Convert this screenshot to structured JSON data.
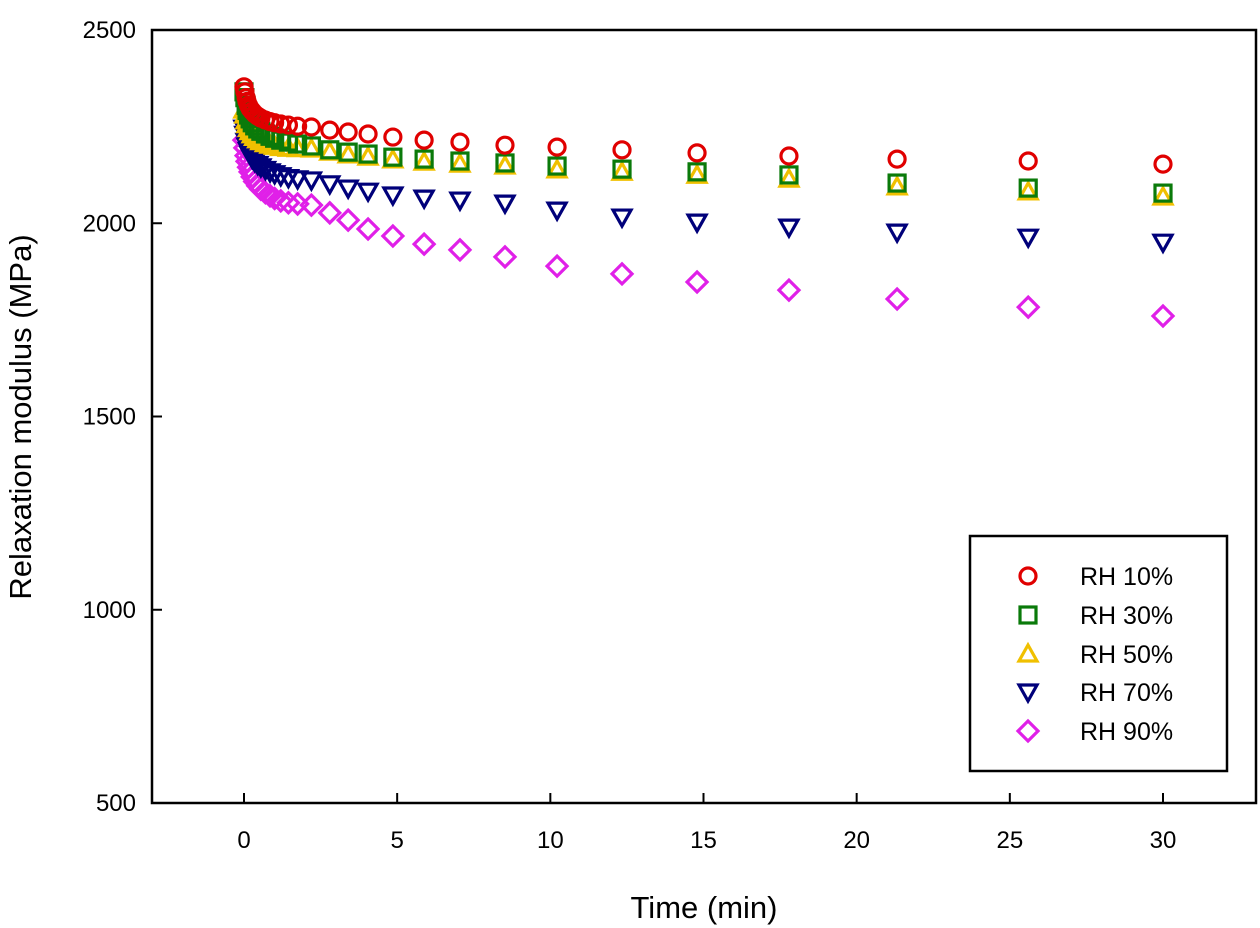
{
  "chart_data": {
    "type": "scatter",
    "title": "",
    "xlabel": "Time (min)",
    "ylabel": "Relaxation modulus (MPa)",
    "xlim": [
      -3,
      33
    ],
    "ylim": [
      500,
      2500
    ],
    "xticks": [
      0,
      5,
      10,
      15,
      20,
      25,
      30
    ],
    "yticks": [
      500,
      1000,
      1500,
      2000,
      2500
    ],
    "xtick_labels": [
      "0",
      "5",
      "10",
      "15",
      "20",
      "25",
      "30"
    ],
    "ytick_labels": [
      "500",
      "1000",
      "1500",
      "2000",
      "2500"
    ],
    "grid": false,
    "legend_position": "bottom-right",
    "x": [
      0,
      0.03,
      0.07,
      0.1,
      0.15,
      0.2,
      0.27,
      0.35,
      0.45,
      0.55,
      0.7,
      0.85,
      1.0,
      1.2,
      1.45,
      1.75,
      2.2,
      2.8,
      3.4,
      4.05,
      4.86,
      5.88,
      7.05,
      8.52,
      10.22,
      12.34,
      14.79,
      17.79,
      21.32,
      25.6,
      30
    ],
    "series": [
      {
        "name": "RH 10%",
        "marker": "circle",
        "color": "#e00000",
        "values": [
          2353,
          2340,
          2325,
          2315,
          2305,
          2297,
          2290,
          2283,
          2277,
          2272,
          2267,
          2263,
          2260,
          2257,
          2254,
          2251,
          2249,
          2241,
          2236,
          2231,
          2223,
          2215,
          2210,
          2202,
          2197,
          2190,
          2182,
          2174,
          2166,
          2161,
          2153
        ]
      },
      {
        "name": "RH 30%",
        "marker": "square",
        "color": "#0a7a0a",
        "values": [
          2340,
          2325,
          2305,
          2292,
          2280,
          2270,
          2260,
          2252,
          2244,
          2238,
          2231,
          2225,
          2220,
          2215,
          2210,
          2205,
          2200,
          2190,
          2184,
          2179,
          2171,
          2166,
          2161,
          2156,
          2148,
          2140,
          2133,
          2125,
          2104,
          2091,
          2078
        ]
      },
      {
        "name": "RH 50%",
        "marker": "triangle-up",
        "color": "#f0c000",
        "values": [
          2293,
          2280,
          2265,
          2255,
          2245,
          2237,
          2229,
          2222,
          2216,
          2211,
          2206,
          2202,
          2199,
          2196,
          2194,
          2193,
          2192,
          2184,
          2177,
          2171,
          2164,
          2158,
          2153,
          2148,
          2138,
          2132,
          2124,
          2114,
          2094,
          2081,
          2068
        ]
      },
      {
        "name": "RH 70%",
        "marker": "triangle-down",
        "color": "#00007a",
        "values": [
          2246,
          2230,
          2212,
          2200,
          2188,
          2178,
          2168,
          2160,
          2152,
          2146,
          2139,
          2133,
          2128,
          2123,
          2118,
          2115,
          2112,
          2102,
          2091,
          2083,
          2073,
          2065,
          2060,
          2052,
          2034,
          2016,
          2003,
          1990,
          1977,
          1964,
          1951
        ]
      },
      {
        "name": "RH 90%",
        "marker": "diamond",
        "color": "#e020e8",
        "values": [
          2215,
          2195,
          2175,
          2160,
          2145,
          2133,
          2120,
          2108,
          2097,
          2088,
          2079,
          2071,
          2064,
          2058,
          2053,
          2050,
          2047,
          2027,
          2008,
          1985,
          1967,
          1946,
          1931,
          1913,
          1889,
          1869,
          1848,
          1827,
          1804,
          1783,
          1760
        ]
      }
    ]
  }
}
